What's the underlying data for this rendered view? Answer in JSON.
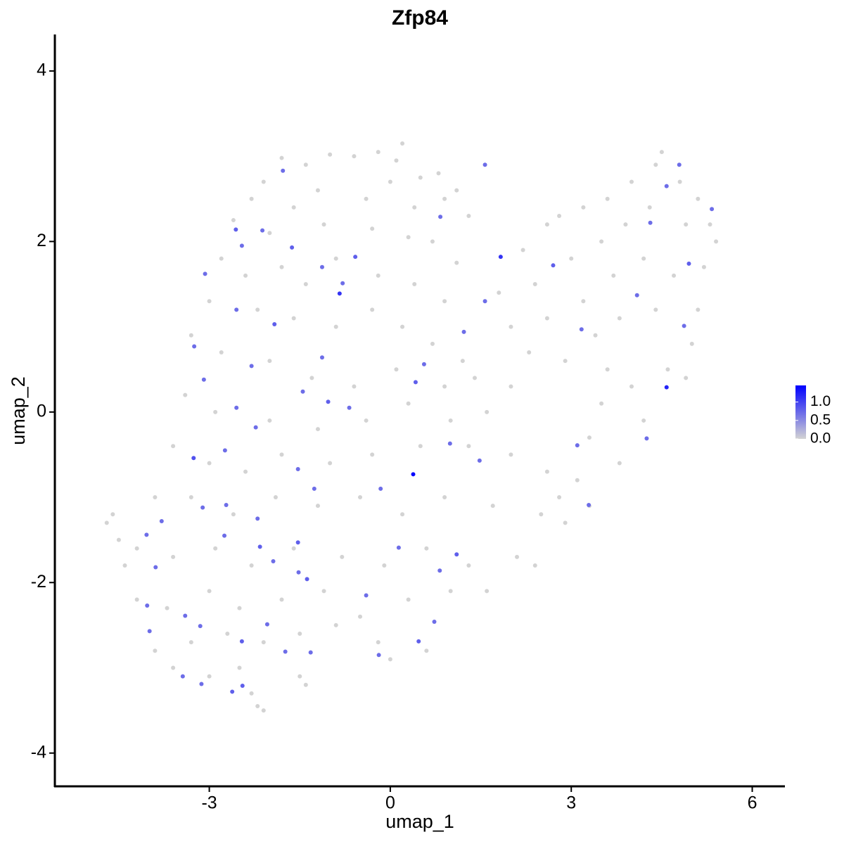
{
  "chart_data": {
    "type": "scatter",
    "title": "Zfp84",
    "xlabel": "umap_1",
    "ylabel": "umap_2",
    "xlim": [
      -5.56,
      6.53
    ],
    "ylim": [
      -4.39,
      4.42
    ],
    "xticks": [
      -3,
      0,
      3,
      6
    ],
    "yticks": [
      -4,
      -2,
      0,
      2,
      4
    ],
    "colors": [
      "#d3d3d3",
      "#0000ff"
    ],
    "colorbar_lim": [
      0,
      1.45
    ],
    "colorbar_ticks": [
      {
        "value": 0,
        "label": "0.0"
      },
      {
        "value": 0.5,
        "label": "0.5"
      },
      {
        "value": 1,
        "label": "1.0"
      }
    ],
    "x": [
      -1.8,
      -1.4,
      -1.0,
      -0.6,
      -0.2,
      0.1,
      0.2,
      0.5,
      0.8,
      1.1,
      -2.1,
      -2.3,
      -1.6,
      -1.2,
      -0.4,
      0.0,
      0.4,
      0.9,
      1.3,
      -2.6,
      -2.0,
      -1.1,
      -0.3,
      0.3,
      0.7,
      1.1,
      -2.8,
      -2.4,
      -1.8,
      -1.4,
      -0.9,
      -0.2,
      0.4,
      0.9,
      -3.0,
      -2.2,
      -1.6,
      -0.9,
      -0.3,
      0.2,
      0.7,
      1.2,
      -3.3,
      -2.8,
      -2.0,
      -1.3,
      -0.6,
      0.1,
      0.9,
      1.4,
      -3.4,
      -2.9,
      -2.0,
      -1.2,
      -0.4,
      0.3,
      1.0,
      1.6,
      2.0,
      -3.6,
      -3.0,
      -2.4,
      -1.8,
      -1.0,
      -0.3,
      0.5,
      1.3,
      2.0,
      2.6,
      -3.9,
      -3.3,
      -2.6,
      -1.9,
      -1.2,
      -0.5,
      0.2,
      0.9,
      1.7,
      2.5,
      2.9,
      -4.6,
      -4.7,
      -4.5,
      -4.2,
      -3.6,
      -2.9,
      -2.3,
      -1.6,
      -0.8,
      -0.1,
      0.6,
      1.3,
      2.1,
      2.4,
      -4.4,
      -4.2,
      -3.7,
      -3.0,
      -2.5,
      -1.8,
      -1.1,
      -0.5,
      0.3,
      1.0,
      1.6,
      -3.9,
      -3.3,
      -2.7,
      -2.1,
      -1.5,
      -0.9,
      -0.2,
      0.0,
      0.6,
      -3.6,
      -3.0,
      -2.5,
      -2.3,
      -2.1,
      -2.2,
      -1.5,
      -1.4,
      1.8,
      2.2,
      2.6,
      2.8,
      3.2,
      3.6,
      4.0,
      4.4,
      4.5,
      4.8,
      5.1,
      5.3,
      5.4,
      2.4,
      3.0,
      3.5,
      3.9,
      4.3,
      4.9,
      5.2,
      2.0,
      2.6,
      3.2,
      3.7,
      4.2,
      4.7,
      5.1,
      2.3,
      2.9,
      3.4,
      3.8,
      4.4,
      5.0,
      3.6,
      4.0,
      4.6,
      4.9,
      3.5,
      4.2,
      3.3,
      3.8,
      3.1,
      2.8,
      3.3,
      -1.78,
      -2.56,
      -2.12,
      -2.46,
      -1.63,
      -1.13,
      -0.58,
      -0.79,
      -0.84,
      -2.55,
      -3.07,
      -1.92,
      -3.25,
      -3.09,
      -2.3,
      -1.13,
      -1.03,
      -0.68,
      -1.45,
      0.42,
      0.56,
      0.83,
      1.57,
      1.83,
      1.22,
      1.57,
      2.7,
      3.17,
      4.09,
      4.31,
      4.79,
      4.58,
      4.95,
      4.87,
      5.33,
      4.58,
      4.25,
      3.1,
      3.29,
      1.48,
      0.99,
      0.38,
      -0.16,
      0.14,
      1.1,
      0.82,
      0.73,
      -0.4,
      -0.19,
      0.47,
      -1.38,
      -1.53,
      -1.26,
      -1.53,
      -2.23,
      -2.55,
      -2.74,
      -3.26,
      -2.72,
      -3.11,
      -2.2,
      -2.16,
      -2.75,
      -1.94,
      -2.04,
      -1.32,
      -1.74,
      -2.45,
      -2.62,
      -3.13,
      -3.44,
      -3.15,
      -3.99,
      -4.03,
      -3.89,
      -3.79,
      -4.04,
      -3.4,
      -2.46,
      -1.52
    ],
    "y": [
      2.98,
      2.9,
      3.02,
      3.0,
      3.05,
      2.95,
      3.15,
      2.75,
      2.8,
      2.6,
      2.7,
      2.5,
      2.4,
      2.6,
      2.5,
      2.7,
      2.4,
      2.5,
      2.3,
      2.25,
      2.1,
      2.2,
      2.15,
      2.05,
      2.0,
      1.75,
      1.8,
      1.6,
      1.7,
      1.5,
      1.8,
      1.6,
      1.5,
      1.3,
      1.3,
      1.2,
      1.1,
      1.0,
      1.2,
      1.0,
      0.8,
      0.6,
      0.9,
      0.7,
      0.6,
      0.4,
      0.3,
      0.5,
      0.3,
      0.4,
      0.2,
      0.0,
      -0.1,
      -0.2,
      -0.1,
      0.1,
      -0.1,
      0.0,
      0.3,
      -0.4,
      -0.6,
      -0.7,
      -0.5,
      -0.6,
      -0.5,
      -0.4,
      -0.4,
      -0.5,
      -0.7,
      -1.0,
      -1.0,
      -1.2,
      -1.0,
      -1.1,
      -1.0,
      -1.2,
      -1.0,
      -1.1,
      -1.2,
      -1.3,
      -1.2,
      -1.3,
      -1.5,
      -1.6,
      -1.7,
      -1.6,
      -1.8,
      -1.6,
      -1.7,
      -1.8,
      -1.6,
      -1.8,
      -1.7,
      -1.8,
      -1.8,
      -2.2,
      -2.3,
      -2.1,
      -2.3,
      -2.2,
      -2.1,
      -2.4,
      -2.2,
      -2.1,
      -2.1,
      -2.8,
      -2.7,
      -2.6,
      -2.7,
      -2.6,
      -2.5,
      -2.7,
      -2.9,
      -2.8,
      -3.0,
      -3.1,
      -3.0,
      -3.3,
      -3.5,
      -3.45,
      -3.1,
      -3.2,
      1.4,
      1.9,
      2.2,
      2.3,
      2.4,
      2.5,
      2.7,
      2.9,
      3.05,
      2.7,
      2.5,
      2.2,
      2.0,
      1.5,
      1.8,
      2.0,
      2.2,
      2.4,
      2.2,
      1.7,
      1.0,
      1.1,
      1.3,
      1.6,
      1.8,
      1.6,
      1.2,
      0.7,
      0.6,
      0.9,
      1.1,
      1.2,
      0.8,
      0.5,
      0.3,
      0.5,
      0.4,
      0.1,
      -0.1,
      -0.3,
      -0.6,
      -0.8,
      -1.0,
      -1.1,
      2.83,
      2.14,
      2.13,
      1.95,
      1.93,
      1.7,
      1.82,
      1.51,
      1.39,
      1.2,
      1.62,
      1.03,
      0.77,
      0.38,
      0.54,
      0.64,
      0.12,
      0.05,
      0.24,
      0.35,
      0.56,
      2.29,
      1.3,
      1.82,
      0.94,
      2.9,
      1.72,
      0.97,
      1.37,
      2.22,
      2.9,
      2.65,
      1.74,
      1.01,
      2.38,
      0.29,
      -0.31,
      -0.39,
      -1.09,
      -0.57,
      -0.37,
      -0.73,
      -0.9,
      -1.59,
      -1.67,
      -1.86,
      -2.46,
      -2.15,
      -2.85,
      -2.69,
      -1.96,
      -1.53,
      -0.9,
      -0.67,
      -0.18,
      0.05,
      -0.45,
      -0.54,
      -1.09,
      -1.12,
      -1.25,
      -1.58,
      -1.45,
      -1.75,
      -2.49,
      -2.82,
      -2.81,
      -3.21,
      -3.28,
      -3.19,
      -3.1,
      -2.51,
      -2.57,
      -2.27,
      -1.82,
      -1.28,
      -1.44,
      -2.39,
      -2.69,
      -1.88
    ],
    "values": [
      0,
      0,
      0,
      0,
      0,
      0,
      0,
      0,
      0,
      0,
      0,
      0,
      0,
      0,
      0,
      0,
      0,
      0,
      0,
      0,
      0,
      0,
      0,
      0,
      0,
      0,
      0,
      0,
      0,
      0,
      0,
      0,
      0,
      0,
      0,
      0,
      0,
      0,
      0,
      0,
      0,
      0,
      0,
      0,
      0,
      0,
      0,
      0,
      0,
      0,
      0,
      0,
      0,
      0,
      0,
      0,
      0,
      0,
      0,
      0,
      0,
      0,
      0,
      0,
      0,
      0,
      0,
      0,
      0,
      0,
      0,
      0,
      0,
      0,
      0,
      0,
      0,
      0,
      0,
      0,
      0,
      0,
      0,
      0,
      0,
      0,
      0,
      0,
      0,
      0,
      0,
      0,
      0,
      0,
      0,
      0,
      0,
      0,
      0,
      0,
      0,
      0,
      0,
      0,
      0,
      0,
      0,
      0,
      0,
      0,
      0,
      0,
      0,
      0,
      0,
      0,
      0,
      0,
      0,
      0,
      0,
      0,
      0,
      0,
      0,
      0,
      0,
      0,
      0,
      0,
      0,
      0,
      0,
      0,
      0,
      0,
      0,
      0,
      0,
      0,
      0,
      0,
      0,
      0,
      0,
      0,
      0,
      0,
      0,
      0,
      0,
      0,
      0,
      0,
      0,
      0,
      0,
      0,
      0,
      0,
      0,
      0,
      0,
      0,
      0,
      0,
      0.7,
      0.8,
      0.7,
      0.7,
      0.8,
      0.7,
      0.8,
      0.7,
      1.1,
      0.7,
      0.7,
      0.8,
      0.7,
      0.7,
      0.7,
      0.7,
      0.8,
      0.7,
      0.7,
      0.8,
      0.7,
      0.7,
      0.7,
      1.1,
      0.7,
      0.7,
      0.8,
      0.7,
      0.7,
      0.7,
      0.7,
      0.7,
      0.8,
      0.7,
      0.7,
      1.2,
      0.7,
      0.7,
      0.7,
      0.7,
      0.7,
      1.42,
      0.7,
      0.7,
      0.8,
      0.7,
      0.7,
      0.7,
      0.7,
      0.8,
      0.8,
      0.8,
      0.7,
      0.7,
      0.7,
      0.7,
      0.7,
      0.9,
      0.7,
      0.7,
      0.7,
      0.8,
      0.7,
      0.7,
      0.7,
      0.7,
      0.7,
      0.8,
      0.8,
      0.7,
      0.7,
      0.7,
      0.7,
      0.7,
      0.7,
      0.7,
      0.7,
      0.7,
      0.8,
      0.7
    ]
  }
}
